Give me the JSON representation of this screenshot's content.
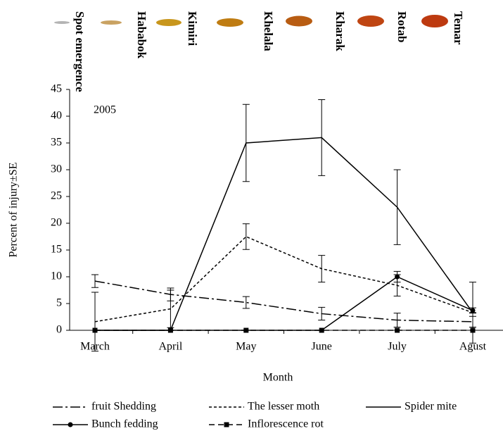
{
  "stages": [
    {
      "name": "Spot emergence",
      "color": "#b4b4b4"
    },
    {
      "name": "Hababok",
      "color": "#c9a262"
    },
    {
      "name": "Kimiri",
      "color": "#c8961c"
    },
    {
      "name": "Khelala",
      "color": "#bf7c12"
    },
    {
      "name": "Kharak",
      "color": "#b85c12"
    },
    {
      "name": "Rotab",
      "color": "#bf4512"
    },
    {
      "name": "Temar",
      "color": "#bd3a10"
    }
  ],
  "chart_data": {
    "type": "line",
    "annotation": "2005",
    "x_label": "Month",
    "y_label": "Percent of injury±SE",
    "categories": [
      "March",
      "April",
      "May",
      "June",
      "July",
      "Agust"
    ],
    "ylim": [
      0,
      45
    ],
    "yticks": [
      0,
      5,
      10,
      15,
      20,
      25,
      30,
      35,
      40,
      45
    ],
    "series": [
      {
        "name": "fruit Shedding",
        "color": "#000000",
        "dash": "14,4,3,4",
        "marker": "none",
        "values": [
          9.2,
          6.7,
          5.2,
          3.1,
          1.9,
          1.6
        ],
        "errors": [
          1.2,
          1.2,
          1.1,
          1.2,
          1.3,
          1.0
        ]
      },
      {
        "name": "The lesser moth",
        "color": "#000000",
        "dash": "4,3",
        "marker": "none",
        "values": [
          1.6,
          4,
          17.5,
          11.5,
          8.4,
          3.3
        ],
        "errors": [
          5.5,
          3.5,
          2.4,
          2.5,
          2.0,
          5.7
        ]
      },
      {
        "name": "Spider mite",
        "color": "#000000",
        "dash": "none",
        "marker": "none",
        "values": [
          0,
          0,
          35,
          36,
          23,
          3.3
        ],
        "errors": [
          0,
          0,
          7.2,
          7.1,
          7.0,
          0
        ]
      },
      {
        "name": "Bunch fedding",
        "color": "#000000",
        "dash": "none",
        "marker": "circle",
        "values": [
          0,
          0,
          0,
          0,
          10,
          3.7
        ],
        "errors": [
          0,
          0,
          0,
          0,
          1.0,
          0.5
        ]
      },
      {
        "name": "Inflorescence rot",
        "color": "#000000",
        "dash": "8,5",
        "marker": "square",
        "values": [
          0,
          0,
          0,
          0,
          0,
          0
        ]
      }
    ]
  }
}
